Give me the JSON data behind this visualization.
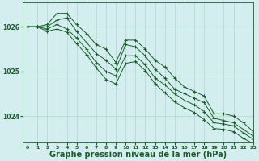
{
  "bg_color": "#d4eef0",
  "grid_color": "#b0d8cc",
  "line_color": "#1a5c2a",
  "xlabel": "Graphe pression niveau de la mer (hPa)",
  "xlabel_fontsize": 7.0,
  "xlim": [
    -0.5,
    23
  ],
  "ylim": [
    1023.4,
    1026.55
  ],
  "yticks": [
    1024,
    1025,
    1026
  ],
  "xticks": [
    0,
    1,
    2,
    3,
    4,
    5,
    6,
    7,
    8,
    9,
    10,
    11,
    12,
    13,
    14,
    15,
    16,
    17,
    18,
    19,
    20,
    21,
    22,
    23
  ],
  "series": [
    [
      1026.0,
      1026.0,
      1026.05,
      1026.3,
      1026.3,
      1026.05,
      1025.85,
      1025.6,
      1025.5,
      1025.2,
      1025.7,
      1025.7,
      1025.5,
      1025.25,
      1025.1,
      1024.85,
      1024.65,
      1024.55,
      1024.45,
      1024.05,
      1024.05,
      1024.0,
      1023.85,
      1023.65
    ],
    [
      1026.0,
      1026.0,
      1026.0,
      1026.15,
      1026.2,
      1025.9,
      1025.65,
      1025.4,
      1025.25,
      1025.05,
      1025.6,
      1025.55,
      1025.35,
      1025.05,
      1024.85,
      1024.6,
      1024.5,
      1024.4,
      1024.3,
      1023.95,
      1023.9,
      1023.85,
      1023.7,
      1023.55
    ],
    [
      1026.0,
      1026.0,
      1025.95,
      1026.05,
      1025.95,
      1025.75,
      1025.5,
      1025.2,
      1025.0,
      1024.9,
      1025.35,
      1025.35,
      1025.15,
      1024.85,
      1024.7,
      1024.5,
      1024.35,
      1024.25,
      1024.1,
      1023.85,
      1023.82,
      1023.78,
      1023.62,
      1023.48
    ],
    [
      1026.0,
      1026.0,
      1025.9,
      1025.95,
      1025.88,
      1025.62,
      1025.38,
      1025.08,
      1024.82,
      1024.72,
      1025.18,
      1025.22,
      1025.02,
      1024.72,
      1024.52,
      1024.32,
      1024.18,
      1024.08,
      1023.92,
      1023.72,
      1023.7,
      1023.65,
      1023.5,
      1023.38
    ]
  ]
}
